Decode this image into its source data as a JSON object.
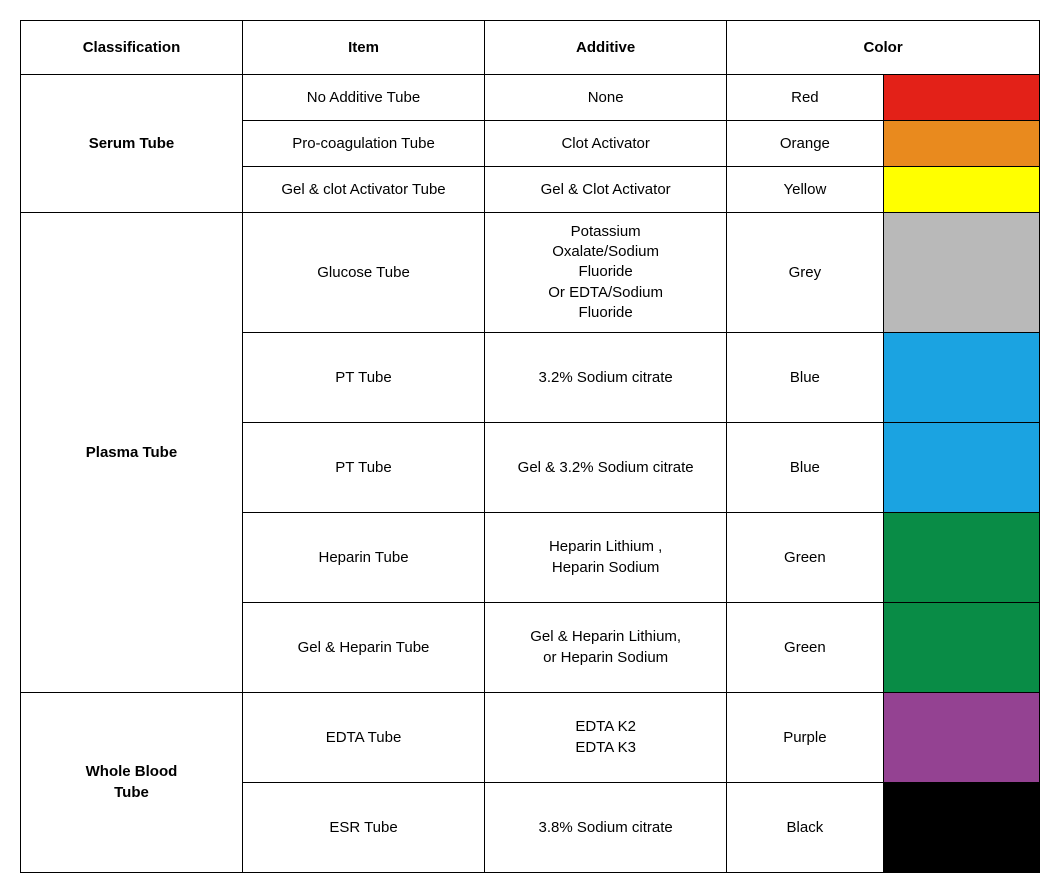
{
  "table": {
    "type": "table",
    "border_color": "#000000",
    "background_color": "#ffffff",
    "header_fontsize": 15,
    "cell_fontsize": 15,
    "columns": {
      "classification": "Classification",
      "item": "Item",
      "additive": "Additive",
      "color": "Color"
    },
    "column_widths": {
      "classification": 220,
      "item": 240,
      "additive": 240,
      "colorname": 155,
      "swatch": 155
    },
    "groups": [
      {
        "classification": "Serum Tube",
        "rows": [
          {
            "item": "No Additive Tube",
            "additive": "None",
            "color_name": "Red",
            "swatch": "#e32118",
            "height": 46
          },
          {
            "item": "Pro-coagulation Tube",
            "additive": "Clot  Activator",
            "color_name": "Orange",
            "swatch": "#e98a1e",
            "height": 46
          },
          {
            "item": "Gel & clot Activator Tube",
            "additive": "Gel & Clot  Activator",
            "color_name": "Yellow",
            "swatch": "#ffff00",
            "height": 46
          }
        ]
      },
      {
        "classification": "Plasma Tube",
        "rows": [
          {
            "item": "Glucose Tube",
            "additive": "Potassium\nOxalate/Sodium\nFluoride\nOr EDTA/Sodium\nFluoride",
            "color_name": "Grey",
            "swatch": "#b9b9b9",
            "height": 120
          },
          {
            "item": "PT Tube",
            "additive": "3.2% Sodium citrate",
            "color_name": "Blue",
            "swatch": "#1ba3e1",
            "height": 90
          },
          {
            "item": "PT Tube",
            "additive": "Gel & 3.2% Sodium citrate",
            "color_name": "Blue",
            "swatch": "#1ba3e1",
            "height": 90
          },
          {
            "item": "Heparin  Tube",
            "additive": "Heparin Lithium ,\nHeparin Sodium",
            "color_name": "Green",
            "swatch": "#098c46",
            "height": 90
          },
          {
            "item": "Gel & Heparin  Tube",
            "additive": "Gel &  Heparin Lithium,\nor Heparin Sodium",
            "color_name": "Green",
            "swatch": "#098c46",
            "height": 90
          }
        ]
      },
      {
        "classification": "Whole Blood\nTube",
        "rows": [
          {
            "item": "EDTA Tube",
            "additive": "EDTA  K2\nEDTA  K3",
            "color_name": "Purple",
            "swatch": "#944292",
            "height": 90
          },
          {
            "item": "ESR Tube",
            "additive": "3.8% Sodium citrate",
            "color_name": "Black",
            "swatch": "#000000",
            "height": 90
          }
        ]
      }
    ]
  }
}
